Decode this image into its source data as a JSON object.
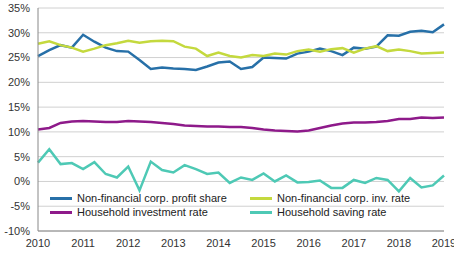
{
  "chart_data": {
    "type": "line",
    "categories": [
      "2010",
      null,
      null,
      null,
      "2011",
      null,
      null,
      null,
      "2012",
      null,
      null,
      null,
      "2013",
      null,
      null,
      null,
      "2014",
      null,
      null,
      null,
      "2015",
      null,
      null,
      null,
      "2016",
      null,
      null,
      null,
      "2017",
      null,
      null,
      null,
      "2018",
      null,
      null,
      null,
      "2019"
    ],
    "series": [
      {
        "name": "Non-financial corp. profit share",
        "color": "#2770a8",
        "values": [
          25.3,
          26.5,
          27.5,
          27.0,
          29.6,
          28.2,
          27.0,
          26.3,
          26.2,
          24.5,
          22.7,
          23.0,
          22.8,
          22.7,
          22.5,
          23.2,
          24.0,
          24.2,
          22.7,
          23.1,
          25.0,
          24.9,
          24.8,
          25.8,
          26.2,
          26.8,
          26.3,
          25.5,
          27.0,
          26.8,
          27.2,
          29.5,
          29.4,
          30.2,
          30.4,
          30.1,
          31.7
        ]
      },
      {
        "name": "Household investment rate",
        "color": "#8e1a8a",
        "values": [
          10.5,
          10.8,
          11.8,
          12.1,
          12.2,
          12.1,
          12.0,
          12.0,
          12.2,
          12.1,
          12.0,
          11.8,
          11.6,
          11.3,
          11.2,
          11.1,
          11.1,
          11.0,
          11.0,
          10.8,
          10.5,
          10.3,
          10.2,
          10.1,
          10.3,
          10.8,
          11.3,
          11.7,
          11.9,
          11.9,
          12.0,
          12.2,
          12.6,
          12.6,
          12.9,
          12.8,
          12.9
        ]
      },
      {
        "name": "Non-financial corp. inv. rate",
        "color": "#c4d93e",
        "values": [
          27.8,
          28.3,
          27.5,
          27.0,
          26.2,
          26.8,
          27.5,
          27.9,
          28.4,
          28.0,
          28.3,
          28.4,
          28.3,
          27.2,
          26.8,
          25.3,
          26.0,
          25.3,
          25.0,
          25.5,
          25.3,
          25.8,
          25.6,
          26.3,
          26.6,
          26.2,
          26.7,
          26.9,
          26.0,
          26.8,
          27.3,
          26.3,
          26.6,
          26.3,
          25.8,
          25.9,
          26.0
        ]
      },
      {
        "name": "Household saving rate",
        "color": "#4ec9b5",
        "values": [
          3.8,
          6.5,
          3.5,
          3.7,
          2.5,
          3.9,
          1.5,
          0.8,
          3.0,
          -1.8,
          4.0,
          2.3,
          1.8,
          3.3,
          2.5,
          1.5,
          1.8,
          -0.3,
          0.8,
          0.3,
          1.6,
          0.0,
          1.2,
          -0.2,
          -0.1,
          0.2,
          -1.3,
          -1.3,
          0.3,
          -0.3,
          0.7,
          0.3,
          -2.0,
          0.7,
          -1.2,
          -0.8,
          1.2
        ]
      }
    ],
    "ylim": [
      -10,
      35
    ],
    "yticks": [
      {
        "value": -10,
        "label": "-10%"
      },
      {
        "value": -5,
        "label": "-5%"
      },
      {
        "value": 0,
        "label": "0%"
      },
      {
        "value": 5,
        "label": "5%"
      },
      {
        "value": 10,
        "label": "10%"
      },
      {
        "value": 15,
        "label": "15%"
      },
      {
        "value": 20,
        "label": "20%"
      },
      {
        "value": 25,
        "label": "25%"
      },
      {
        "value": 30,
        "label": "30%"
      },
      {
        "value": 35,
        "label": "35%"
      }
    ],
    "grid": true,
    "legend": "bottom"
  }
}
